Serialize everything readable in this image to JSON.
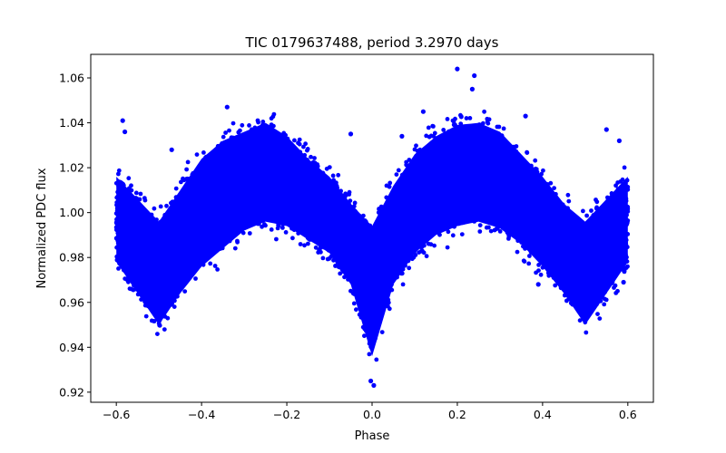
{
  "chart_data": {
    "type": "scatter",
    "title": "TIC 0179637488, period 3.2970 days",
    "xlabel": "Phase",
    "ylabel": "Normalized PDC flux",
    "xlim": [
      -0.66,
      0.66
    ],
    "ylim": [
      0.9155,
      1.0705
    ],
    "x_ticks": [
      -0.6,
      -0.4,
      -0.2,
      0.0,
      0.2,
      0.4,
      0.6
    ],
    "x_tick_labels": [
      "−0.6",
      "−0.4",
      "−0.2",
      "0.0",
      "0.2",
      "0.4",
      "0.6"
    ],
    "y_ticks": [
      0.92,
      0.94,
      0.96,
      0.98,
      1.0,
      1.02,
      1.04,
      1.06
    ],
    "y_tick_labels": [
      "0.92",
      "0.94",
      "0.96",
      "0.98",
      "1.00",
      "1.02",
      "1.04",
      "1.06"
    ],
    "grid": false,
    "marker_color": "#0000ff",
    "series": [
      {
        "name": "PDC flux",
        "envelope": {
          "phase": [
            -0.6,
            -0.55,
            -0.5,
            -0.45,
            -0.4,
            -0.35,
            -0.3,
            -0.25,
            -0.2,
            -0.15,
            -0.1,
            -0.05,
            0.0,
            0.05,
            0.1,
            0.15,
            0.2,
            0.25,
            0.3,
            0.35,
            0.4,
            0.45,
            0.5,
            0.55,
            0.6
          ],
          "flux_low": [
            0.972,
            0.958,
            0.944,
            0.958,
            0.97,
            0.978,
            0.986,
            0.99,
            0.988,
            0.982,
            0.976,
            0.962,
            0.93,
            0.962,
            0.976,
            0.984,
            0.988,
            0.99,
            0.987,
            0.98,
            0.97,
            0.958,
            0.944,
            0.958,
            0.972
          ],
          "flux_high": [
            1.022,
            1.012,
            1.002,
            1.016,
            1.03,
            1.038,
            1.042,
            1.046,
            1.04,
            1.03,
            1.022,
            1.01,
            1.0,
            1.018,
            1.032,
            1.04,
            1.045,
            1.046,
            1.042,
            1.032,
            1.022,
            1.01,
            1.002,
            1.012,
            1.022
          ]
        },
        "outliers": [
          {
            "x": -0.585,
            "y": 1.041
          },
          {
            "x": -0.58,
            "y": 1.036
          },
          {
            "x": -0.47,
            "y": 1.028
          },
          {
            "x": -0.34,
            "y": 1.047
          },
          {
            "x": -0.05,
            "y": 1.035
          },
          {
            "x": 0.07,
            "y": 1.034
          },
          {
            "x": 0.12,
            "y": 1.045
          },
          {
            "x": 0.2,
            "y": 1.064
          },
          {
            "x": 0.235,
            "y": 1.055
          },
          {
            "x": 0.24,
            "y": 1.061
          },
          {
            "x": 0.36,
            "y": 1.043
          },
          {
            "x": 0.55,
            "y": 1.037
          },
          {
            "x": 0.58,
            "y": 1.032
          },
          {
            "x": 0.004,
            "y": 0.923
          },
          {
            "x": -0.003,
            "y": 0.925
          },
          {
            "x": 0.39,
            "y": 0.968
          },
          {
            "x": 0.59,
            "y": 0.969
          }
        ]
      }
    ]
  }
}
